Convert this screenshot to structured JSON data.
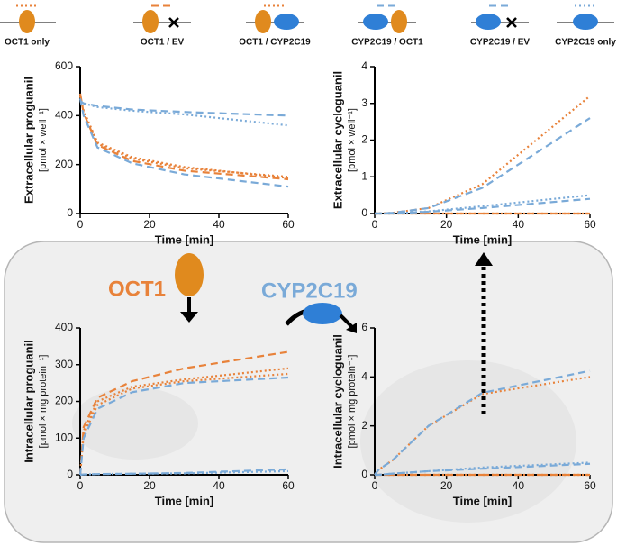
{
  "legend": [
    {
      "name": "OCT1 only",
      "color": "#e8823a",
      "linestyle": "dotted"
    },
    {
      "name": "OCT1 / EV",
      "color": "#e8823a",
      "linestyle": "dashed"
    },
    {
      "name": "OCT1 / CYP2C19",
      "color": "#e8823a",
      "linestyle": "dotted"
    },
    {
      "name": "CYP2C19 / OCT1",
      "color": "#7aaad8",
      "linestyle": "dashed"
    },
    {
      "name": "CYP2C19 / EV",
      "color": "#7aaad8",
      "linestyle": "dashed"
    },
    {
      "name": "CYP2C19 only",
      "color": "#7aaad8",
      "linestyle": "dotted"
    }
  ],
  "labels": {
    "transporter": "OCT1",
    "enzyme": "CYP2C19"
  },
  "chart_data": [
    {
      "type": "line",
      "y_label": "Extracellular proguanil",
      "y_unit": "[pmol × well⁻¹]",
      "x_label": "Time [min]",
      "x": [
        0,
        1,
        5,
        15,
        30,
        60
      ],
      "xlim": [
        0,
        60
      ],
      "xticks": [
        0,
        20,
        40,
        60
      ],
      "ylim": [
        0,
        600
      ],
      "yticks": [
        0,
        200,
        400,
        600
      ],
      "series": [
        {
          "values": [
            480,
            420,
            290,
            230,
            190,
            145
          ]
        },
        {
          "values": [
            490,
            410,
            280,
            215,
            175,
            140
          ]
        },
        {
          "values": [
            480,
            415,
            285,
            225,
            185,
            150
          ]
        },
        {
          "values": [
            470,
            400,
            270,
            205,
            160,
            110
          ]
        },
        {
          "values": [
            460,
            450,
            440,
            425,
            415,
            400
          ]
        },
        {
          "values": [
            460,
            450,
            435,
            420,
            405,
            360
          ]
        }
      ]
    },
    {
      "type": "line",
      "y_label": "Extracellular cycloguanil",
      "y_unit": "[pmol × well⁻¹]",
      "x_label": "Time [min]",
      "x": [
        0,
        1,
        5,
        15,
        30,
        60
      ],
      "xlim": [
        0,
        60
      ],
      "xticks": [
        0,
        20,
        40,
        60
      ],
      "ylim": [
        0,
        4
      ],
      "yticks": [
        0,
        1,
        2,
        3,
        4
      ],
      "series": [
        {
          "values": [
            0,
            0,
            0,
            0,
            0,
            0
          ]
        },
        {
          "values": [
            0,
            0,
            0,
            0,
            0,
            0
          ]
        },
        {
          "values": [
            0,
            0,
            0.02,
            0.15,
            0.8,
            3.2
          ]
        },
        {
          "values": [
            0,
            0,
            0.02,
            0.15,
            0.7,
            2.6
          ]
        },
        {
          "values": [
            0,
            0,
            0,
            0.05,
            0.15,
            0.4
          ]
        },
        {
          "values": [
            0,
            0,
            0,
            0.06,
            0.2,
            0.5
          ]
        }
      ]
    },
    {
      "type": "line",
      "y_label": "Intracellular proguanil",
      "y_unit": "[pmol × mg protein⁻¹]",
      "x_label": "Time [min]",
      "x": [
        0,
        1,
        5,
        15,
        30,
        60
      ],
      "xlim": [
        0,
        60
      ],
      "xticks": [
        0,
        20,
        40,
        60
      ],
      "ylim": [
        0,
        400
      ],
      "yticks": [
        0,
        100,
        200,
        300,
        400
      ],
      "series": [
        {
          "values": [
            0,
            120,
            200,
            240,
            260,
            290
          ]
        },
        {
          "values": [
            0,
            130,
            210,
            255,
            290,
            335
          ]
        },
        {
          "values": [
            0,
            110,
            190,
            235,
            255,
            275
          ]
        },
        {
          "values": [
            0,
            100,
            180,
            225,
            250,
            265
          ]
        },
        {
          "values": [
            0,
            1,
            2,
            3,
            5,
            15
          ]
        },
        {
          "values": [
            0,
            1,
            2,
            3,
            4,
            10
          ]
        }
      ]
    },
    {
      "type": "line",
      "y_label": "Intracellular cycloguanil",
      "y_unit": "[pmol × mg protein⁻¹]",
      "x_label": "Time [min]",
      "x": [
        0,
        1,
        5,
        15,
        30,
        60
      ],
      "xlim": [
        0,
        60
      ],
      "xticks": [
        0,
        20,
        40,
        60
      ],
      "ylim": [
        0,
        6
      ],
      "yticks": [
        0,
        2,
        4,
        6
      ],
      "series": [
        {
          "values": [
            0,
            0,
            0,
            0,
            0,
            0
          ]
        },
        {
          "values": [
            0,
            0,
            0,
            0,
            0,
            0
          ]
        },
        {
          "values": [
            0,
            0.2,
            0.6,
            2.0,
            3.3,
            4.0
          ]
        },
        {
          "values": [
            0,
            0.2,
            0.6,
            2.0,
            3.35,
            4.25
          ]
        },
        {
          "values": [
            0,
            0,
            0.05,
            0.15,
            0.25,
            0.45
          ]
        },
        {
          "values": [
            0,
            0,
            0.05,
            0.15,
            0.3,
            0.5
          ]
        }
      ]
    }
  ]
}
